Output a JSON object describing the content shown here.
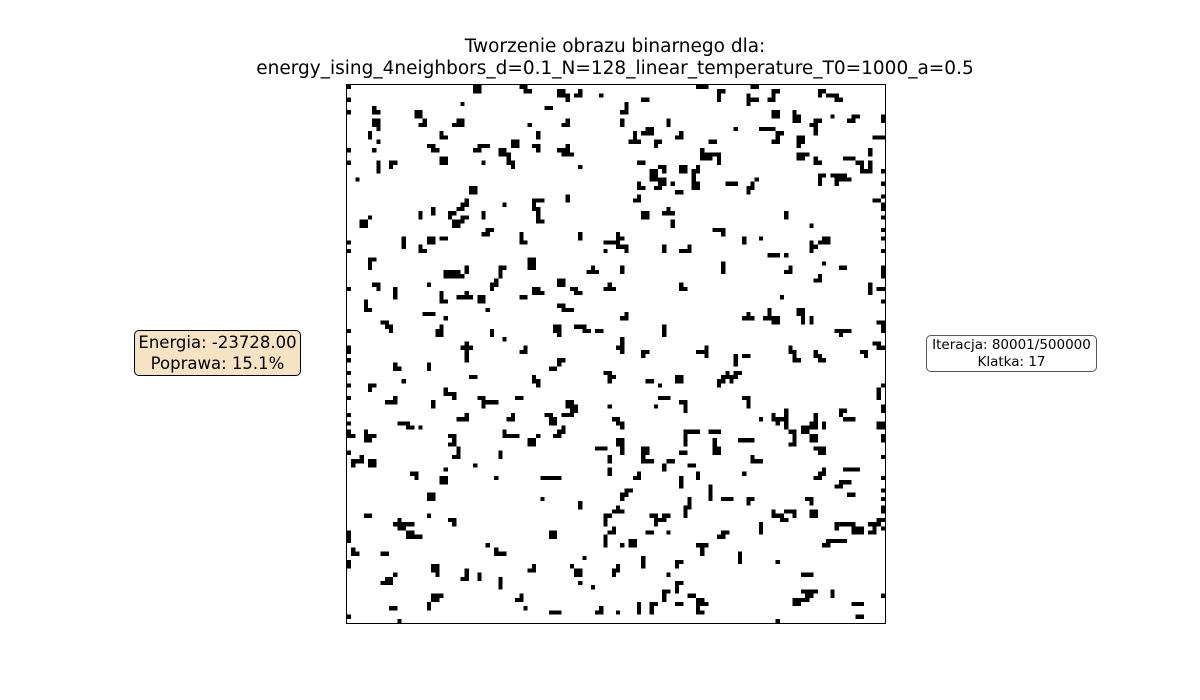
{
  "title": {
    "line1": "Tworzenie obrazu binarnego dla:",
    "line2": "energy_ising_4neighbors_d=0.1_N=128_linear_temperature_T0=1000_a=0.5"
  },
  "energy_panel": {
    "energy": "Energia: -23728.00",
    "improvement": "Poprawa: 15.1%"
  },
  "iteration_panel": {
    "iteration": "Iteracja: 80001/500000",
    "frame": "Klatka: 17"
  },
  "image": {
    "grid_size": 128,
    "foreground_color": "#000000",
    "background_color": "#ffffff"
  }
}
